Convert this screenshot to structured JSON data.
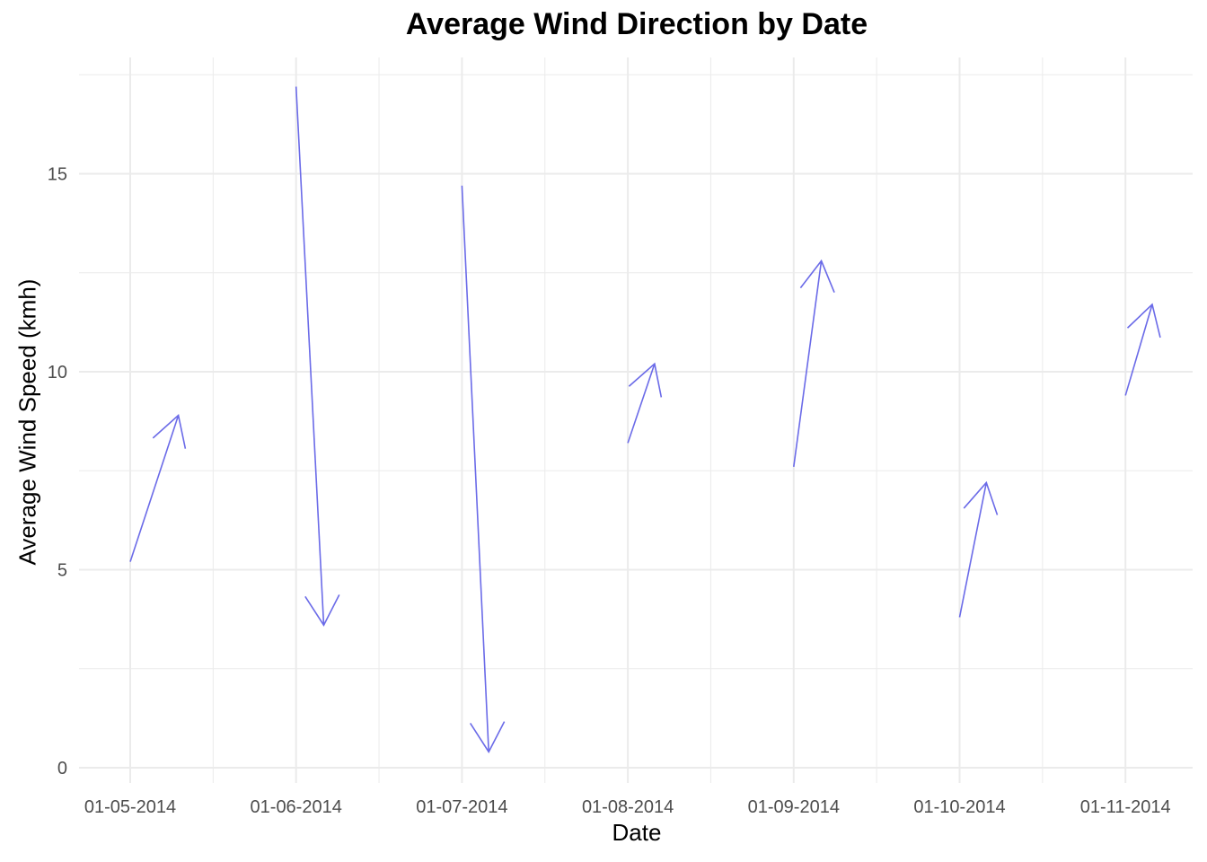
{
  "chart_data": {
    "type": "vector",
    "title": "Average Wind Direction by Date",
    "xlabel": "Date",
    "ylabel": "Average Wind Speed (kmh)",
    "x_ticks": [
      "01-05-2014",
      "01-06-2014",
      "01-07-2014",
      "01-08-2014",
      "01-09-2014",
      "01-10-2014",
      "01-11-2014"
    ],
    "y_ticks": [
      0,
      5,
      10,
      15
    ],
    "ylim": [
      -0.4,
      17.9
    ],
    "grid": true,
    "arrow_color": "#6b6be8",
    "grid_color": "#ebebeb",
    "series": [
      {
        "segments": [
          {
            "x_start": "01-05-2014",
            "y_start": 5.2,
            "x_end": "2014-05-10",
            "y_end": 8.9
          },
          {
            "x_start": "01-06-2014",
            "y_start": 17.2,
            "x_end": "2014-06-06",
            "y_end": 3.6
          },
          {
            "x_start": "01-07-2014",
            "y_start": 14.7,
            "x_end": "2014-07-06",
            "y_end": 0.4
          },
          {
            "x_start": "01-08-2014",
            "y_start": 8.2,
            "x_end": "2014-08-06",
            "y_end": 10.2
          },
          {
            "x_start": "01-09-2014",
            "y_start": 7.6,
            "x_end": "2014-09-06",
            "y_end": 12.8
          },
          {
            "x_start": "01-10-2014",
            "y_start": 3.8,
            "x_end": "2014-10-06",
            "y_end": 7.2
          },
          {
            "x_start": "01-11-2014",
            "y_start": 9.4,
            "x_end": "2014-11-06",
            "y_end": 11.7
          }
        ]
      }
    ]
  }
}
